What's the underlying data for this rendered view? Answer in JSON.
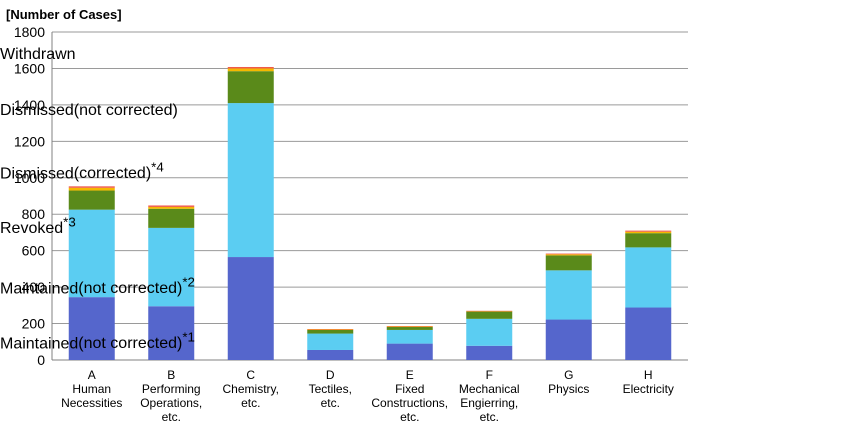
{
  "chart_data": {
    "type": "bar",
    "stacked": true,
    "y_axis_title": "[Number of Cases]",
    "ylim": [
      0,
      1800
    ],
    "yticks": [
      0,
      200,
      400,
      600,
      800,
      1000,
      1200,
      1400,
      1600,
      1800
    ],
    "grid": true,
    "legend_position": "right",
    "categories": [
      [
        "A",
        "Human",
        "Necessities"
      ],
      [
        "B",
        "Performing",
        "Operations,",
        "etc."
      ],
      [
        "C",
        "Chemistry,",
        "etc."
      ],
      [
        "D",
        "Tectiles,",
        "etc."
      ],
      [
        "E",
        "Fixed",
        "Constructions,",
        "etc."
      ],
      [
        "F",
        "Mechanical",
        "Engierring,",
        "etc."
      ],
      [
        "G",
        "Physics"
      ],
      [
        "H",
        "Electricity"
      ]
    ],
    "series": [
      {
        "name": "Maintained",
        "name_sub": "(not corrected)",
        "note": "*1",
        "color": "#5566cc",
        "values": [
          345,
          295,
          565,
          55,
          90,
          78,
          222,
          288
        ]
      },
      {
        "name": "Maintained",
        "name_sub": "(not corrected)",
        "note": "*2",
        "color": "#5bcdf2",
        "values": [
          480,
          430,
          845,
          90,
          75,
          148,
          270,
          330
        ]
      },
      {
        "name": "Revoked",
        "name_sub": "",
        "note": "*3",
        "color": "#5a8a1a",
        "values": [
          105,
          105,
          175,
          20,
          16,
          40,
          82,
          78
        ]
      },
      {
        "name": "Dismissed",
        "name_sub": "(corrected)",
        "note": "*4",
        "color": "#f5b800",
        "values": [
          15,
          10,
          15,
          3,
          3,
          2,
          6,
          8
        ]
      },
      {
        "name": "Dismissed",
        "name_sub": "(not corrected)",
        "note": "",
        "color": "#6a35a8",
        "values": [
          0,
          0,
          0,
          0,
          0,
          0,
          0,
          0
        ]
      },
      {
        "name": "Withdrawn",
        "name_sub": "",
        "note": "",
        "color": "#f05a4a",
        "values": [
          8,
          8,
          8,
          2,
          2,
          2,
          4,
          6
        ]
      }
    ]
  }
}
